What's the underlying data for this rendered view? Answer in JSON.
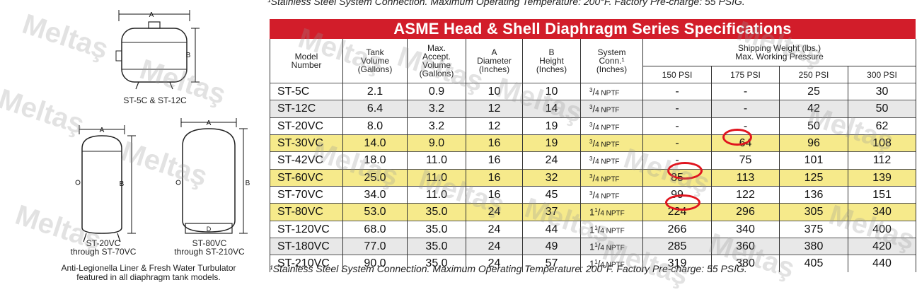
{
  "top_footnote": "¹Stainless Steel System Connection.  Maximum Operating Temperature: 200°F. Factory Pre-charge: 55 PSIG.",
  "bottom_footnote": "¹Stainless Steel System Connection.  Maximum Operating Temperature: 200°F. Factory Pre-charge: 55 PSIG.",
  "left": {
    "dim_a": "A",
    "dim_b": "B",
    "caption_top": "ST-5C & ST-12C",
    "caption_left_1": "ST-20VC",
    "caption_left_2": "through ST-70VC",
    "caption_right_1": "ST-80VC",
    "caption_right_2": "through ST-210VC",
    "liner_1": "Anti-Legionella Liner & Fresh Water Turbulator",
    "liner_2": "featured in all diaphragm tank models."
  },
  "table": {
    "title": "ASME Head & Shell Diaphragm Series Specifications",
    "headers": {
      "model": [
        "Model",
        "Number"
      ],
      "volume": [
        "Tank",
        "Volume",
        "(Gallons)"
      ],
      "accept": [
        "Max.",
        "Accept.",
        "Volume",
        "(Gallons)"
      ],
      "diameter": [
        "A",
        "Diameter",
        "(Inches)"
      ],
      "height": [
        "B",
        "Height",
        "(Inches)"
      ],
      "conn": [
        "System",
        "Conn.¹",
        "(Inches)"
      ],
      "shipping": [
        "Shipping Weight (lbs.)",
        "Max. Working Pressure"
      ],
      "psi": [
        "150 PSI",
        "175 PSI",
        "250 PSI",
        "300 PSI"
      ]
    },
    "rows": [
      {
        "model": "ST-5C",
        "volume": "2.1",
        "accept": "0.9",
        "dia": "10",
        "height": "10",
        "conn_whole": "",
        "conn_num": "3",
        "conn_den": "4",
        "conn_unit": "NPTF",
        "p150": "-",
        "p175": "-",
        "p250": "25",
        "p300": "30",
        "hl": false
      },
      {
        "model": "ST-12C",
        "volume": "6.4",
        "accept": "3.2",
        "dia": "12",
        "height": "14",
        "conn_whole": "",
        "conn_num": "3",
        "conn_den": "4",
        "conn_unit": "NPTF",
        "p150": "-",
        "p175": "-",
        "p250": "42",
        "p300": "50",
        "hl": false
      },
      {
        "model": "ST-20VC",
        "volume": "8.0",
        "accept": "3.2",
        "dia": "12",
        "height": "19",
        "conn_whole": "",
        "conn_num": "3",
        "conn_den": "4",
        "conn_unit": "NPTF",
        "p150": "-",
        "p175": "-",
        "p250": "50",
        "p300": "62",
        "hl": false
      },
      {
        "model": "ST-30VC",
        "volume": "14.0",
        "accept": "9.0",
        "dia": "16",
        "height": "19",
        "conn_whole": "",
        "conn_num": "3",
        "conn_den": "4",
        "conn_unit": "NPTF",
        "p150": "-",
        "p175": "64",
        "p250": "96",
        "p300": "108",
        "hl": true
      },
      {
        "model": "ST-42VC",
        "volume": "18.0",
        "accept": "11.0",
        "dia": "16",
        "height": "24",
        "conn_whole": "",
        "conn_num": "3",
        "conn_den": "4",
        "conn_unit": "NPTF",
        "p150": "-",
        "p175": "75",
        "p250": "101",
        "p300": "112",
        "hl": false
      },
      {
        "model": "ST-60VC",
        "volume": "25.0",
        "accept": "11.0",
        "dia": "16",
        "height": "32",
        "conn_whole": "",
        "conn_num": "3",
        "conn_den": "4",
        "conn_unit": "NPTF",
        "p150": "85",
        "p175": "113",
        "p250": "125",
        "p300": "139",
        "hl": true
      },
      {
        "model": "ST-70VC",
        "volume": "34.0",
        "accept": "11.0",
        "dia": "16",
        "height": "45",
        "conn_whole": "",
        "conn_num": "3",
        "conn_den": "4",
        "conn_unit": "NPTF",
        "p150": "99",
        "p175": "122",
        "p250": "136",
        "p300": "151",
        "hl": false
      },
      {
        "model": "ST-80VC",
        "volume": "53.0",
        "accept": "35.0",
        "dia": "24",
        "height": "37",
        "conn_whole": "1",
        "conn_num": "1",
        "conn_den": "4",
        "conn_unit": "NPTF",
        "p150": "224",
        "p175": "296",
        "p250": "305",
        "p300": "340",
        "hl": true
      },
      {
        "model": "ST-120VC",
        "volume": "68.0",
        "accept": "35.0",
        "dia": "24",
        "height": "44",
        "conn_whole": "1",
        "conn_num": "1",
        "conn_den": "4",
        "conn_unit": "NPTF",
        "p150": "266",
        "p175": "340",
        "p250": "375",
        "p300": "400",
        "hl": false
      },
      {
        "model": "ST-180VC",
        "volume": "77.0",
        "accept": "35.0",
        "dia": "24",
        "height": "49",
        "conn_whole": "1",
        "conn_num": "1",
        "conn_den": "4",
        "conn_unit": "NPTF",
        "p150": "285",
        "p175": "360",
        "p250": "380",
        "p300": "420",
        "hl": false
      },
      {
        "model": "ST-210VC",
        "volume": "90.0",
        "accept": "35.0",
        "dia": "24",
        "height": "57",
        "conn_whole": "1",
        "conn_num": "1",
        "conn_den": "4",
        "conn_unit": "NPTF",
        "p150": "319",
        "p175": "380",
        "p250": "405",
        "p300": "440",
        "hl": false
      }
    ]
  },
  "watermark": "Meltaş",
  "colors": {
    "banner": "#d21d2a",
    "highlight": "#f6ea8b",
    "stripe": "#e8e8e8",
    "circle": "#e0141e"
  }
}
